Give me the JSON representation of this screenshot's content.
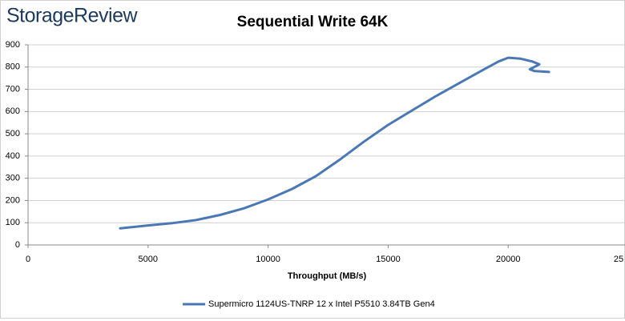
{
  "chart_data": {
    "type": "line",
    "brand": "StorageReview",
    "title": "Sequential Write 64K",
    "x_label": "Throughput (MB/s)",
    "series": [
      {
        "name": "Supermicro 1124US-TNRP 12 x Intel P5510 3.84TB Gen4",
        "color": "#4a78b5",
        "x": [
          3840,
          5000,
          6000,
          7000,
          8000,
          9000,
          10000,
          11000,
          12000,
          13000,
          14000,
          15000,
          16000,
          17000,
          18000,
          19000,
          19600,
          20000,
          20500,
          21000,
          21300,
          20900,
          21100,
          21700
        ],
        "values": [
          75,
          88,
          98,
          112,
          135,
          165,
          205,
          252,
          310,
          385,
          465,
          540,
          605,
          670,
          730,
          790,
          825,
          842,
          838,
          825,
          812,
          790,
          782,
          778
        ]
      }
    ],
    "xlim": [
      0,
      25000
    ],
    "xticks": [
      0,
      5000,
      10000,
      15000,
      20000,
      {
        "value": 25000,
        "label": "25"
      }
    ],
    "ylim": [
      0,
      900
    ],
    "yticks": [
      0,
      100,
      200,
      300,
      400,
      500,
      600,
      700,
      800,
      900
    ],
    "grid": true,
    "legend": "bottom"
  }
}
